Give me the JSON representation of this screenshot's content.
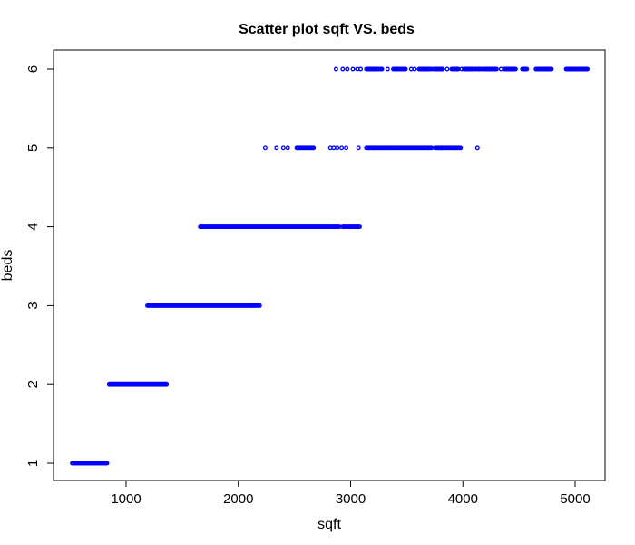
{
  "chart_data": {
    "type": "scatter",
    "title": "Scatter plot sqft VS. beds",
    "xlabel": "sqft",
    "ylabel": "beds",
    "xlim": [
      500,
      5100
    ],
    "ylim": [
      1,
      6
    ],
    "xticks": [
      1000,
      2000,
      3000,
      4000,
      5000
    ],
    "yticks": [
      1,
      2,
      3,
      4,
      5,
      6
    ],
    "grid": false,
    "marker": "circle",
    "color": "#0000ff",
    "series": [
      {
        "groups": [
          {
            "y": 1,
            "segments": [
              [
                520,
                830
              ]
            ]
          },
          {
            "y": 2,
            "segments": [
              [
                850,
                1360
              ]
            ]
          },
          {
            "y": 3,
            "segments": [
              [
                1190,
                2190
              ]
            ]
          },
          {
            "y": 4,
            "segments": [
              [
                1660,
                2900
              ],
              [
                2930,
                3080
              ]
            ]
          },
          {
            "y": 5,
            "segments": [
              [
                2520,
                2670
              ],
              [
                3140,
                3720
              ],
              [
                3750,
                3980
              ]
            ],
            "points": [
              2240,
              2340,
              2400,
              2440,
              2820,
              2850,
              2880,
              2920,
              2960,
              3070,
              3810,
              4130
            ]
          },
          {
            "y": 6,
            "segments": [
              [
                3140,
                3280
              ],
              [
                3380,
                3490
              ],
              [
                3610,
                3720
              ],
              [
                3740,
                3820
              ],
              [
                3900,
                3960
              ],
              [
                4010,
                4090
              ],
              [
                4110,
                4160
              ],
              [
                4180,
                4300
              ],
              [
                4370,
                4470
              ],
              [
                4530,
                4570
              ],
              [
                4650,
                4790
              ],
              [
                4920,
                5110
              ]
            ],
            "points": [
              2870,
              2930,
              2970,
              3020,
              3060,
              3090,
              3330,
              3540,
              3570,
              3860,
              3990,
              4340
            ]
          }
        ]
      }
    ]
  }
}
